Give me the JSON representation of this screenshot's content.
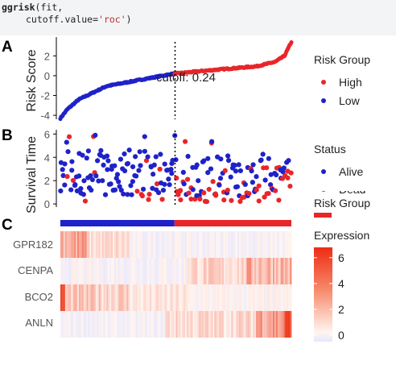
{
  "code": {
    "line1_fn": "ggrisk",
    "line1_args": "(fit,",
    "line2_key": "cutoff.value=",
    "line2_value": "'roc'",
    "line2_end": ")"
  },
  "colors": {
    "high": "#e8262a",
    "low": "#1f22c8",
    "alive": "#1f22c8",
    "dead": "#e8262a",
    "heat_low": "#eeeeff",
    "heat_mid": "#fff3ee",
    "heat_high": "#ee3a1c"
  },
  "chart_data": [
    {
      "panel": "A",
      "type": "scatter",
      "ylabel": "Risk Score",
      "xlabel": "",
      "yticks": [
        -4,
        -2,
        0,
        2
      ],
      "ylim": [
        -4.4,
        3.9
      ],
      "n_points": 290,
      "cutoff_index": 143,
      "cutoff_value": 0.24,
      "cutoff_label": "cutoff: 0.24",
      "x": "patients sorted by risk score (index 1–290)",
      "y_profile": [
        [
          0,
          -4.3
        ],
        [
          0.03,
          -3.4
        ],
        [
          0.08,
          -2.4
        ],
        [
          0.2,
          -1.05
        ],
        [
          0.35,
          -0.4
        ],
        [
          0.49,
          0.2
        ],
        [
          0.65,
          0.55
        ],
        [
          0.85,
          0.95
        ],
        [
          0.93,
          1.4
        ],
        [
          0.97,
          2.0
        ],
        [
          1.0,
          3.4
        ]
      ],
      "legend": {
        "title": "Risk Group",
        "entries": [
          "High",
          "Low"
        ],
        "placement": "right"
      }
    },
    {
      "panel": "B",
      "type": "scatter",
      "ylabel": "Survival Time",
      "yticks": [
        0,
        2,
        4,
        6
      ],
      "ylim": [
        -0.2,
        6.3
      ],
      "series": [
        {
          "name": "Alive",
          "color": "#1f22c8"
        },
        {
          "name": "Dead",
          "color": "#e8262a"
        }
      ],
      "legend": {
        "title": "Status",
        "entries": [
          "Alive",
          "Dead"
        ],
        "placement": "right"
      }
    },
    {
      "panel": "C",
      "type": "heatmap",
      "rows": [
        "GPR182",
        "CENPA",
        "BCO2",
        "ANLN"
      ],
      "risk_bar": {
        "low_fraction": 0.494
      },
      "legend_risk": {
        "title": "Risk Group"
      },
      "legend_expr": {
        "title": "Expression",
        "ticks": [
          0,
          2,
          4,
          6
        ],
        "range": [
          -0.5,
          6.8
        ]
      }
    }
  ],
  "panel_labels": [
    "A",
    "B",
    "C"
  ]
}
